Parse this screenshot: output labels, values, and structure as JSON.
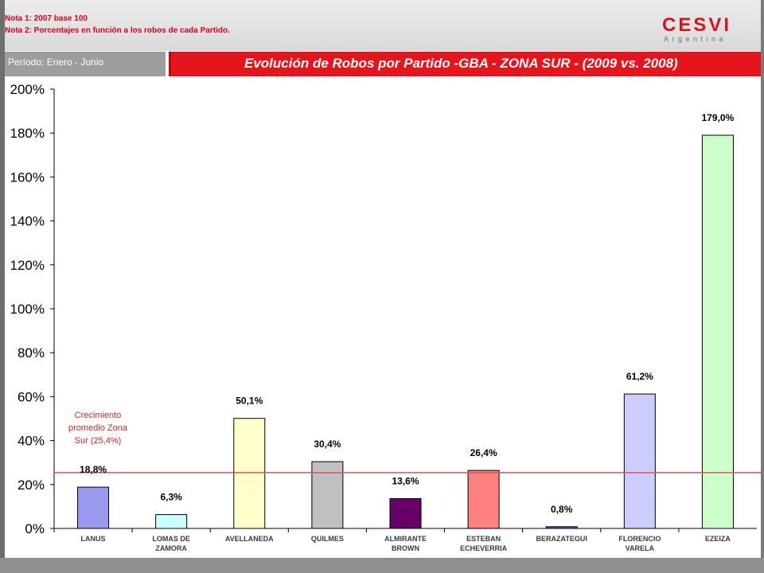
{
  "notes": {
    "note1": "Nota 1: 2007 base 100",
    "note2": "Nota 2: Porcentajes en función a los robos de cada Partido."
  },
  "brand": {
    "name": "CESVI",
    "sub": "Argentina",
    "color": "#d4141e"
  },
  "period": "Período: Enero - Junio",
  "title": "Evolución de Robos por Partido -GBA - ZONA SUR - (2009 vs. 2008)",
  "colors": {
    "accent": "#e4151c",
    "average_line": "#e85050"
  },
  "chart_data": {
    "type": "bar",
    "title": "Evolución de Robos por Partido -GBA - ZONA SUR - (2009 vs. 2008)",
    "categories": [
      [
        "LANUS"
      ],
      [
        "LOMAS DE",
        "ZAMORA"
      ],
      [
        "AVELLANEDA"
      ],
      [
        "QUILMES"
      ],
      [
        "ALMIRANTE",
        "BROWN"
      ],
      [
        "ESTEBAN",
        "ECHEVERRIA"
      ],
      [
        "BERAZATEGUI"
      ],
      [
        "FLORENCIO",
        "VARELA"
      ],
      [
        "EZEIZA"
      ]
    ],
    "values": [
      18.8,
      6.3,
      50.1,
      30.4,
      13.6,
      26.4,
      0.8,
      61.2,
      179.0
    ],
    "value_labels": [
      "18,8%",
      "6,3%",
      "50,1%",
      "30,4%",
      "13,6%",
      "26,4%",
      "0,8%",
      "61,2%",
      "179,0%"
    ],
    "bar_colors": [
      "#9999ee",
      "#ccffff",
      "#ffffcc",
      "#c0c0c0",
      "#660066",
      "#ff8080",
      "#3366cc",
      "#ccccff",
      "#ccffcc"
    ],
    "ylim": [
      0,
      200
    ],
    "yticks": [
      0,
      20,
      40,
      60,
      80,
      100,
      120,
      140,
      160,
      180,
      200
    ],
    "ytick_labels": [
      "0%",
      "20%",
      "40%",
      "60%",
      "80%",
      "100%",
      "120%",
      "140%",
      "160%",
      "180%",
      "200%"
    ],
    "grid": false,
    "reference_line": {
      "value": 25.4,
      "label": [
        "Crecimiento",
        "promedio Zona",
        "Sur (25,4%)"
      ]
    }
  }
}
